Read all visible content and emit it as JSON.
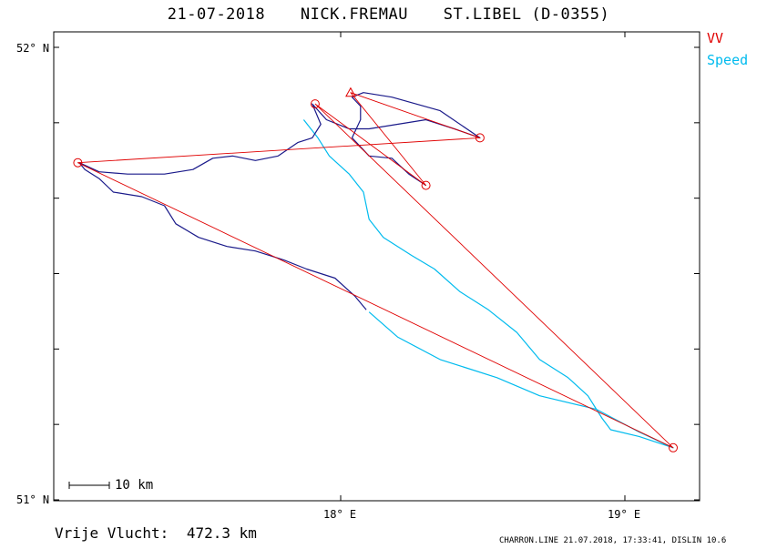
{
  "header": {
    "date": "21-07-2018",
    "pilot": "NICK.FREMAU",
    "glider": "ST.LIBEL (D-0355)"
  },
  "legend": [
    {
      "label": "VV",
      "color": "#e00000"
    },
    {
      "label": "Speed",
      "color": "#00bbee"
    }
  ],
  "axes": {
    "lat_top": "52° N",
    "lat_bottom": "51° N",
    "lon_1": "18° E",
    "lon_2": "19° E",
    "lat_range": [
      51.0,
      52.0
    ],
    "lon_range": [
      17.0,
      19.25
    ]
  },
  "scale_bar": {
    "label": "10 km"
  },
  "distance": {
    "label": "Vrije Vlucht:",
    "value": "472.3 km"
  },
  "footer": {
    "text": "CHARRON.LINE 21.07.2018, 17:33:41, DISLIN 10.6"
  },
  "colors": {
    "task": "#e00000",
    "speed_track": "#00bbee",
    "track": "#1a1a8a"
  },
  "chart_data": {
    "type": "line",
    "task_points": [
      {
        "lon": 17.91,
        "lat": 51.875
      },
      {
        "lon": 17.075,
        "lat": 51.745
      },
      {
        "lon": 19.17,
        "lat": 51.115
      },
      {
        "lon": 18.49,
        "lat": 51.8
      },
      {
        "lon": 18.3,
        "lat": 51.695
      }
    ],
    "task_route": [
      [
        17.91,
        51.875
      ],
      [
        18.3,
        51.695
      ],
      [
        18.035,
        51.9
      ],
      [
        18.49,
        51.8
      ],
      [
        17.075,
        51.745
      ],
      [
        19.17,
        51.115
      ],
      [
        17.91,
        51.875
      ]
    ],
    "track_dark": [
      [
        18.09,
        51.42
      ],
      [
        18.05,
        51.45
      ],
      [
        17.98,
        51.49
      ],
      [
        17.88,
        51.51
      ],
      [
        17.8,
        51.53
      ],
      [
        17.7,
        51.55
      ],
      [
        17.6,
        51.56
      ],
      [
        17.5,
        51.58
      ],
      [
        17.42,
        51.61
      ],
      [
        17.38,
        51.65
      ],
      [
        17.3,
        51.67
      ],
      [
        17.2,
        51.68
      ],
      [
        17.15,
        51.71
      ],
      [
        17.1,
        51.73
      ],
      [
        17.08,
        51.745
      ],
      [
        17.15,
        51.725
      ],
      [
        17.25,
        51.72
      ],
      [
        17.38,
        51.72
      ],
      [
        17.48,
        51.73
      ],
      [
        17.55,
        51.755
      ],
      [
        17.62,
        51.76
      ],
      [
        17.7,
        51.75
      ],
      [
        17.78,
        51.76
      ],
      [
        17.85,
        51.79
      ],
      [
        17.9,
        51.8
      ],
      [
        17.93,
        51.83
      ],
      [
        17.9,
        51.875
      ],
      [
        17.95,
        51.84
      ],
      [
        18.03,
        51.82
      ],
      [
        18.1,
        51.82
      ],
      [
        18.2,
        51.83
      ],
      [
        18.3,
        51.84
      ],
      [
        18.4,
        51.82
      ],
      [
        18.49,
        51.8
      ],
      [
        18.35,
        51.86
      ],
      [
        18.18,
        51.89
      ],
      [
        18.08,
        51.9
      ],
      [
        18.04,
        51.89
      ],
      [
        18.07,
        51.87
      ],
      [
        18.07,
        51.84
      ],
      [
        18.04,
        51.8
      ],
      [
        18.1,
        51.76
      ],
      [
        18.18,
        51.755
      ],
      [
        18.24,
        51.72
      ],
      [
        18.3,
        51.695
      ]
    ],
    "track_speed": [
      [
        17.87,
        51.84
      ],
      [
        17.92,
        51.8
      ],
      [
        17.96,
        51.76
      ],
      [
        18.03,
        51.72
      ],
      [
        18.08,
        51.68
      ],
      [
        18.1,
        51.62
      ],
      [
        18.15,
        51.58
      ],
      [
        18.25,
        51.54
      ],
      [
        18.33,
        51.51
      ],
      [
        18.42,
        51.46
      ],
      [
        18.52,
        51.42
      ],
      [
        18.62,
        51.37
      ],
      [
        18.7,
        51.31
      ],
      [
        18.8,
        51.27
      ],
      [
        18.87,
        51.23
      ],
      [
        18.92,
        51.18
      ],
      [
        18.95,
        51.155
      ],
      [
        19.05,
        51.14
      ],
      [
        19.17,
        51.115
      ],
      [
        19.05,
        51.15
      ],
      [
        18.9,
        51.2
      ],
      [
        18.7,
        51.23
      ],
      [
        18.55,
        51.27
      ],
      [
        18.35,
        51.31
      ],
      [
        18.2,
        51.36
      ],
      [
        18.1,
        51.415
      ]
    ]
  }
}
